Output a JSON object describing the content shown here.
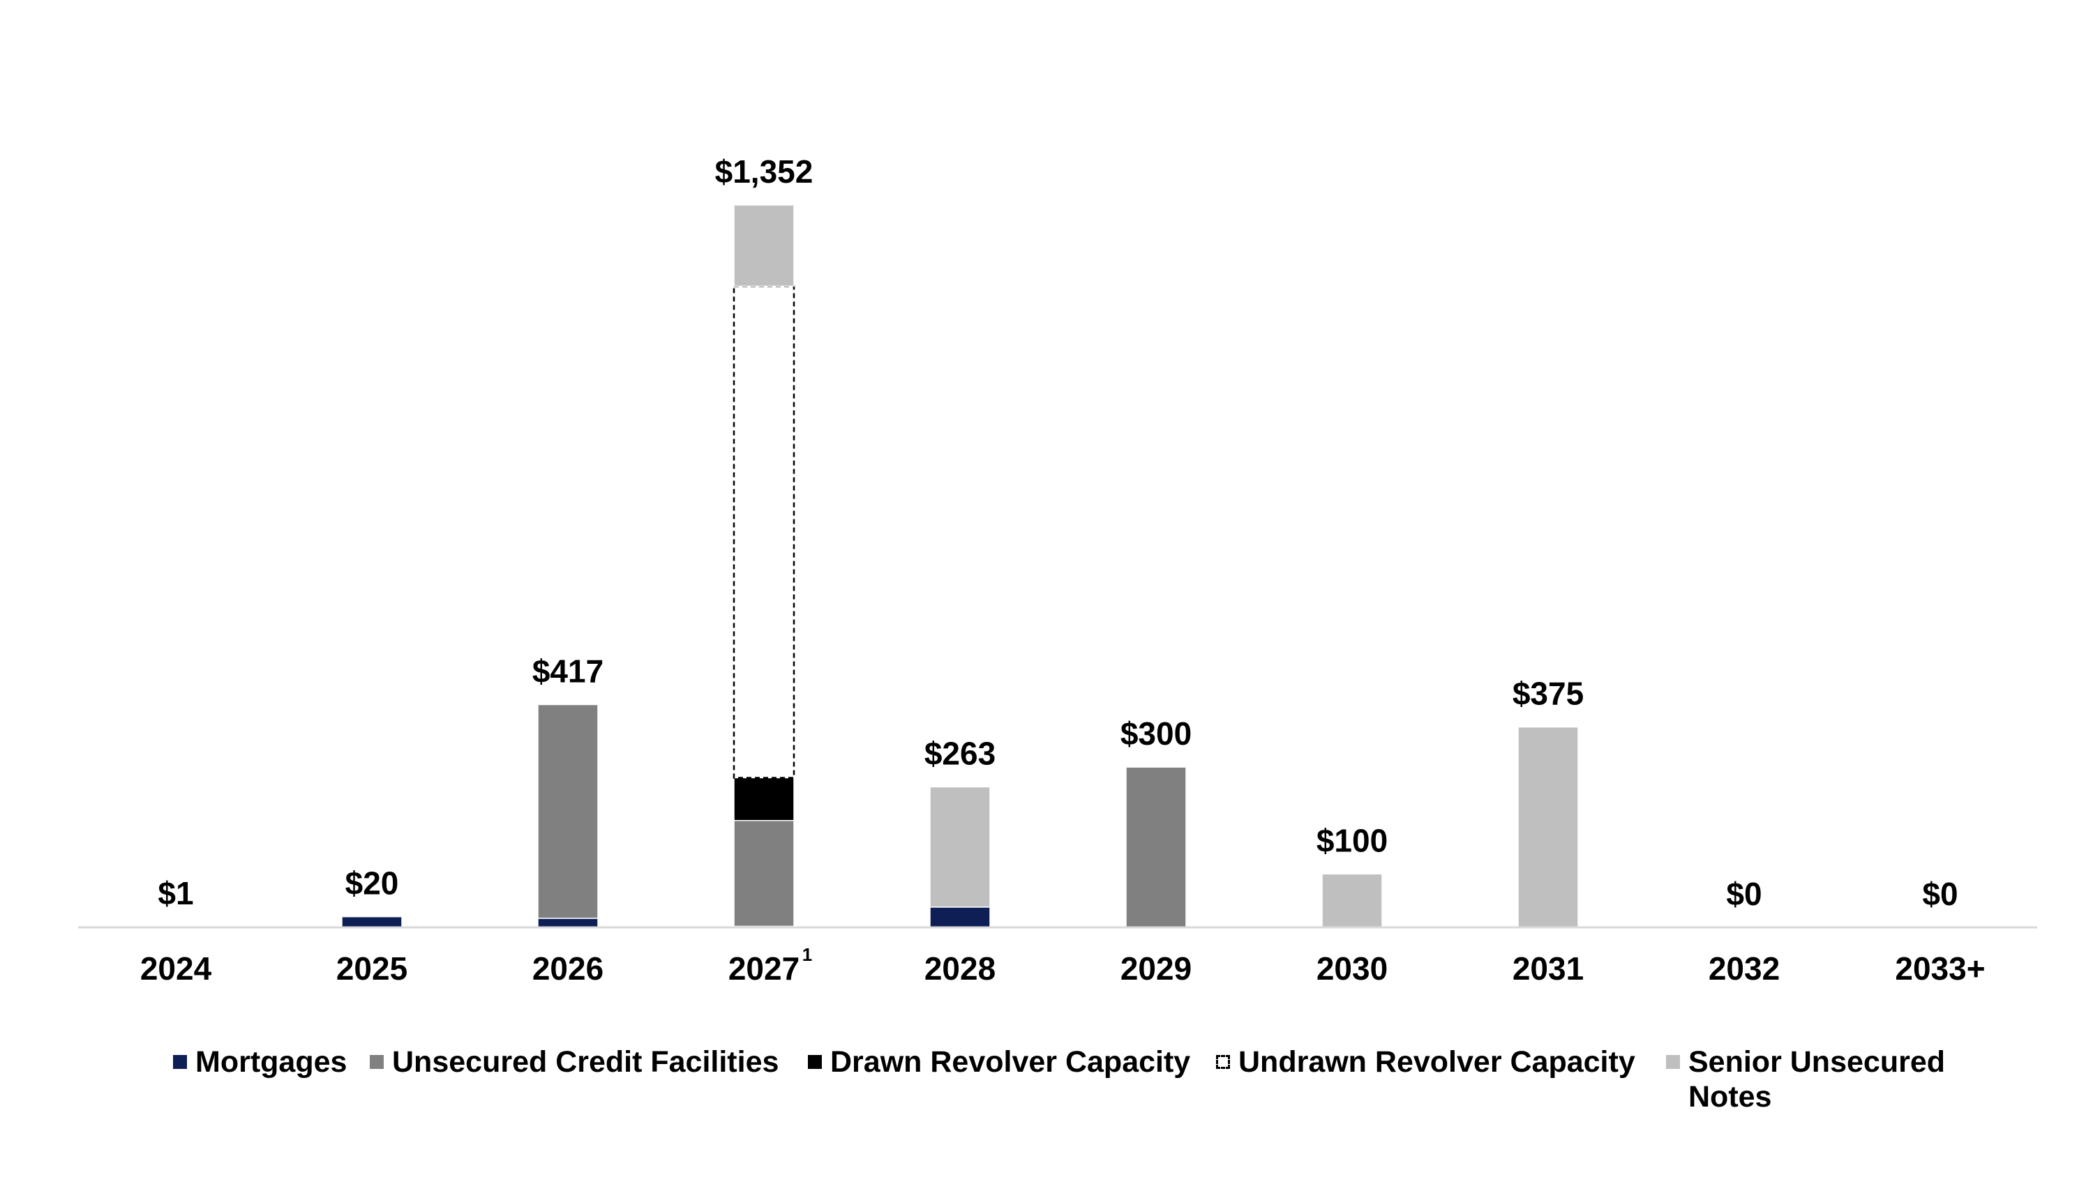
{
  "chart_data": {
    "type": "bar",
    "stacked": true,
    "title": "",
    "xlabel": "",
    "ylabel": "",
    "ylim": [
      0,
      1352
    ],
    "grid": false,
    "legend_position": "bottom",
    "categories": [
      "2024",
      "2025",
      "2026",
      "2027",
      "2028",
      "2029",
      "2030",
      "2031",
      "2032",
      "2033+"
    ],
    "category_footnotes": [
      "",
      "",
      "",
      "1",
      "",
      "",
      "",
      "",
      "",
      ""
    ],
    "totals": [
      1,
      20,
      417,
      1352,
      263,
      300,
      100,
      375,
      0,
      0
    ],
    "total_labels": [
      "$1",
      "$20",
      "$417",
      "$1,352",
      "$263",
      "$300",
      "$100",
      "$375",
      "$0",
      "$0"
    ],
    "series": [
      {
        "name": "Mortgages",
        "color": "#0d1f55",
        "style": "solid",
        "values": [
          1,
          20,
          17,
          2,
          38,
          0,
          0,
          0,
          0,
          0
        ]
      },
      {
        "name": "Unsecured Credit Facilities",
        "color": "#808080",
        "style": "solid",
        "values": [
          0,
          0,
          400,
          198,
          0,
          300,
          0,
          0,
          0,
          0
        ]
      },
      {
        "name": "Drawn Revolver Capacity",
        "color": "#000000",
        "style": "solid",
        "values": [
          0,
          0,
          0,
          80,
          0,
          0,
          0,
          0,
          0,
          0
        ]
      },
      {
        "name": "Undrawn Revolver Capacity",
        "color": "#ffffff",
        "style": "dashed",
        "values": [
          0,
          0,
          0,
          920,
          0,
          0,
          0,
          0,
          0,
          0
        ]
      },
      {
        "name": "Senior Unsecured Notes",
        "color": "#bfbfbf",
        "style": "solid",
        "values": [
          0,
          0,
          0,
          152,
          225,
          0,
          100,
          375,
          0,
          0
        ]
      }
    ]
  },
  "legend": {
    "items": [
      {
        "label": "Mortgages",
        "color": "#0d1f55",
        "style": "solid"
      },
      {
        "label": "Unsecured Credit Facilities",
        "color": "#808080",
        "style": "solid"
      },
      {
        "label": "Drawn Revolver Capacity",
        "color": "#000000",
        "style": "solid"
      },
      {
        "label": "Undrawn Revolver Capacity",
        "color": "#ffffff",
        "style": "dashed"
      },
      {
        "label": "Senior Unsecured\nNotes",
        "color": "#bfbfbf",
        "style": "solid"
      }
    ]
  }
}
